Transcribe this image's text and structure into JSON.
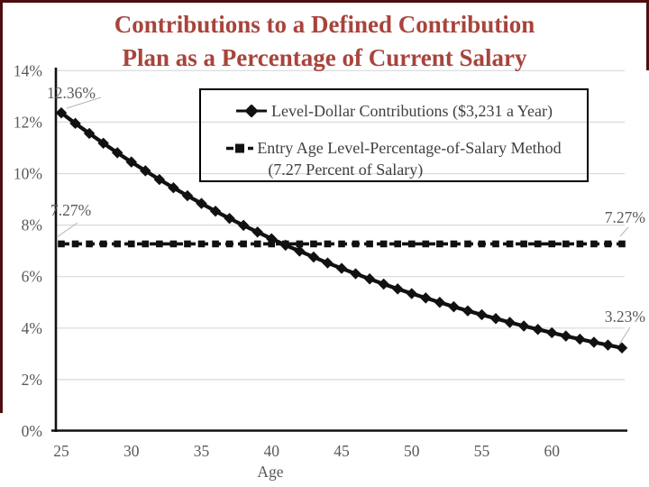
{
  "frame": {
    "border_color": "#4f0d0d",
    "background": "#ffffff"
  },
  "chart_data": {
    "type": "line",
    "title": "Contributions to a Defined Contribution Plan as a Percentage of Current Salary",
    "title_lines": [
      "Contributions to a Defined Contribution",
      "Plan as a Percentage of Current Salary"
    ],
    "title_color": "#a8443c",
    "xlabel": "Age",
    "ylabel": "",
    "xlim": [
      25,
      65
    ],
    "ylim": [
      0,
      14
    ],
    "grid": "horizontal",
    "gridline_color": "#d9d9d9",
    "axis_text_color": "#595959",
    "series_color": "#111111",
    "x": [
      25,
      26,
      27,
      28,
      29,
      30,
      31,
      32,
      33,
      34,
      35,
      36,
      37,
      38,
      39,
      40,
      41,
      42,
      43,
      44,
      45,
      46,
      47,
      48,
      49,
      50,
      51,
      52,
      53,
      54,
      55,
      56,
      57,
      58,
      59,
      60,
      61,
      62,
      63,
      64,
      65
    ],
    "x_tick_values": [
      25,
      30,
      35,
      40,
      45,
      50,
      55,
      60
    ],
    "x_tick_labels": [
      "25",
      "30",
      "35",
      "40",
      "45",
      "50",
      "55",
      "60"
    ],
    "y_tick_values": [
      0,
      2,
      4,
      6,
      8,
      10,
      12,
      14
    ],
    "y_tick_labels": [
      "0%",
      "2%",
      "4%",
      "6%",
      "8%",
      "10%",
      "12%",
      "14%"
    ],
    "series": [
      {
        "name": "Level-Dollar Contributions ($3,231 a Year)",
        "marker": "diamond",
        "line": "solid",
        "values": [
          12.36,
          11.95,
          11.56,
          11.18,
          10.81,
          10.45,
          10.11,
          9.77,
          9.45,
          9.14,
          8.84,
          8.54,
          8.26,
          7.99,
          7.73,
          7.47,
          7.22,
          6.99,
          6.76,
          6.53,
          6.32,
          6.11,
          5.91,
          5.71,
          5.52,
          5.34,
          5.17,
          5.0,
          4.83,
          4.67,
          4.52,
          4.37,
          4.22,
          4.08,
          3.95,
          3.82,
          3.69,
          3.57,
          3.45,
          3.34,
          3.23
        ]
      },
      {
        "name": "Entry Age Level-Percentage-of-Salary Method (7.27 Percent of Salary)",
        "marker": "square",
        "line": "dashed",
        "values": [
          7.27,
          7.27,
          7.27,
          7.27,
          7.27,
          7.27,
          7.27,
          7.27,
          7.27,
          7.27,
          7.27,
          7.27,
          7.27,
          7.27,
          7.27,
          7.27,
          7.27,
          7.27,
          7.27,
          7.27,
          7.27,
          7.27,
          7.27,
          7.27,
          7.27,
          7.27,
          7.27,
          7.27,
          7.27,
          7.27,
          7.27,
          7.27,
          7.27,
          7.27,
          7.27,
          7.27,
          7.27,
          7.27,
          7.27,
          7.27,
          7.27
        ]
      }
    ],
    "annotations": [
      {
        "id": "start",
        "text": "12.36%",
        "age": 25,
        "value": 12.36
      },
      {
        "id": "pct-left",
        "text": "7.27%",
        "age": 25,
        "value": 7.27
      },
      {
        "id": "pct-right",
        "text": "7.27%",
        "age": 65,
        "value": 7.27
      },
      {
        "id": "end",
        "text": "3.23%",
        "age": 65,
        "value": 3.23
      }
    ],
    "legend_position": "upper center"
  },
  "legend": {
    "entry1": "Level-Dollar Contributions ($3,231 a Year)",
    "entry2_line1": "Entry Age Level-Percentage-of-Salary Method",
    "entry2_line2": "(7.27 Percent of Salary)"
  }
}
